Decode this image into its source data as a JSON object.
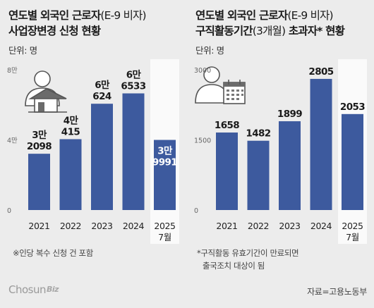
{
  "left_panel": {
    "title_line1_bold": "연도별 외국인 근로자",
    "title_line1_light": "(E-9 비자)",
    "title_line2": "사업장변경 신청 현황",
    "unit": "단위: 명",
    "footnote": "※인당 복수 신청 건 포함"
  },
  "right_panel": {
    "title_line1_bold": "연도별 외국인 근로자",
    "title_line1_light": "(E-9 비자)",
    "title_line2_a": "구직활동기간",
    "title_line2_light": "(3개월)",
    "title_line2_b": " 초과자* 현황",
    "unit": "단위: 명",
    "footnote_line1": "*구직활동 유효기간이 만료되면",
    "footnote_line2": "출국조치 대상이 됨"
  },
  "logo": {
    "main": "Chosun",
    "sub": "Biz"
  },
  "source": "자료=고용노동부",
  "colors": {
    "bar": "#3d5a9e",
    "highlight": "#fafafa",
    "background": "#ececec"
  },
  "icons": {
    "left": "person-house-icon",
    "right": "person-calendar-icon"
  },
  "chart_data": [
    {
      "type": "bar",
      "categories": [
        "2021",
        "2022",
        "2023",
        "2024",
        "2025"
      ],
      "category_sublabels": [
        "",
        "",
        "",
        "",
        "7월"
      ],
      "values": [
        32098,
        40415,
        60624,
        66533,
        39991
      ],
      "value_labels": [
        [
          "3만",
          "2098"
        ],
        [
          "4만",
          "415"
        ],
        [
          "6만",
          "624"
        ],
        [
          "6만",
          "6533"
        ],
        [
          "3만",
          "9991"
        ]
      ],
      "yticks": [
        0,
        40000,
        80000
      ],
      "ytick_labels": [
        "0",
        "4만",
        "8만"
      ],
      "ylim": [
        0,
        80000
      ],
      "grid": false,
      "highlight_last": true
    },
    {
      "type": "bar",
      "categories": [
        "2021",
        "2022",
        "2023",
        "2024",
        "2025"
      ],
      "category_sublabels": [
        "",
        "",
        "",
        "",
        "7월"
      ],
      "values": [
        1658,
        1482,
        1899,
        2805,
        2053
      ],
      "value_labels": [
        [
          "1658"
        ],
        [
          "1482"
        ],
        [
          "1899"
        ],
        [
          "2805"
        ],
        [
          "2053"
        ]
      ],
      "yticks": [
        0,
        1500,
        3000
      ],
      "ytick_labels": [
        "0",
        "1500",
        "3000"
      ],
      "ylim": [
        0,
        3000
      ],
      "grid": false,
      "highlight_last": true
    }
  ]
}
